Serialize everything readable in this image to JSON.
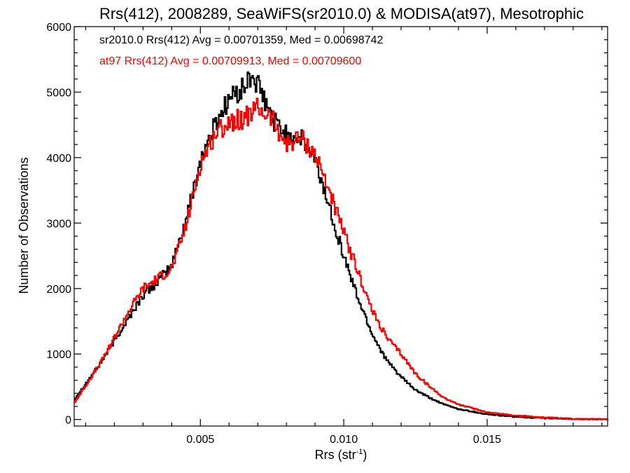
{
  "chart_data": {
    "type": "line",
    "title": "Rrs(412), 2008289, SeaWiFS(sr2010.0) & MODISA(at97), Mesotrophic",
    "xlabel_main": "Rrs (str",
    "xlabel_sup": "-1",
    "xlabel_close": ")",
    "ylabel": "Number of Observations",
    "xlim": [
      0.0006,
      0.0192
    ],
    "ylim": [
      -100,
      6000
    ],
    "x_ticks": [
      0.005,
      0.01,
      0.015
    ],
    "x_tick_labels": [
      "0.005",
      "0.010",
      "0.015"
    ],
    "y_ticks": [
      0,
      1000,
      2000,
      3000,
      4000,
      5000,
      6000
    ],
    "y_tick_labels": [
      "0",
      "1000",
      "2000",
      "3000",
      "4000",
      "5000",
      "6000"
    ],
    "grid": false,
    "legend_placement": "top-left",
    "series": [
      {
        "label": "sr2010.0 Rrs(412) Avg = 0.00701359, Med = 0.00698742",
        "color": "#000000",
        "x": [
          0.0006,
          0.0015,
          0.002,
          0.0025,
          0.003,
          0.0035,
          0.004,
          0.0045,
          0.005,
          0.0055,
          0.006,
          0.0065,
          0.0068,
          0.007,
          0.0075,
          0.008,
          0.0085,
          0.009,
          0.0095,
          0.01,
          0.0105,
          0.011,
          0.0115,
          0.012,
          0.0125,
          0.013,
          0.0135,
          0.014,
          0.015,
          0.016,
          0.017,
          0.018,
          0.0192
        ],
        "y": [
          300,
          850,
          1200,
          1550,
          1900,
          2100,
          2350,
          3050,
          3950,
          4500,
          4900,
          5050,
          5250,
          5100,
          4600,
          4350,
          4300,
          3950,
          3250,
          2500,
          1850,
          1300,
          900,
          650,
          450,
          330,
          230,
          160,
          80,
          40,
          20,
          8,
          0
        ]
      },
      {
        "label": "at97 Rrs(412) Avg = 0.00709913, Med = 0.00709600",
        "color": "#ff0000",
        "x": [
          0.0006,
          0.0015,
          0.002,
          0.0025,
          0.003,
          0.0035,
          0.004,
          0.0045,
          0.005,
          0.0055,
          0.006,
          0.0065,
          0.007,
          0.0075,
          0.008,
          0.0085,
          0.009,
          0.0095,
          0.01,
          0.0105,
          0.011,
          0.0115,
          0.012,
          0.0125,
          0.013,
          0.0135,
          0.014,
          0.015,
          0.016,
          0.017,
          0.018,
          0.0192
        ],
        "y": [
          250,
          850,
          1250,
          1650,
          2000,
          2150,
          2300,
          2950,
          3900,
          4350,
          4550,
          4600,
          4750,
          4600,
          4200,
          4300,
          4050,
          3500,
          2850,
          2250,
          1650,
          1250,
          1000,
          700,
          500,
          330,
          230,
          110,
          60,
          30,
          10,
          0
        ]
      }
    ]
  }
}
